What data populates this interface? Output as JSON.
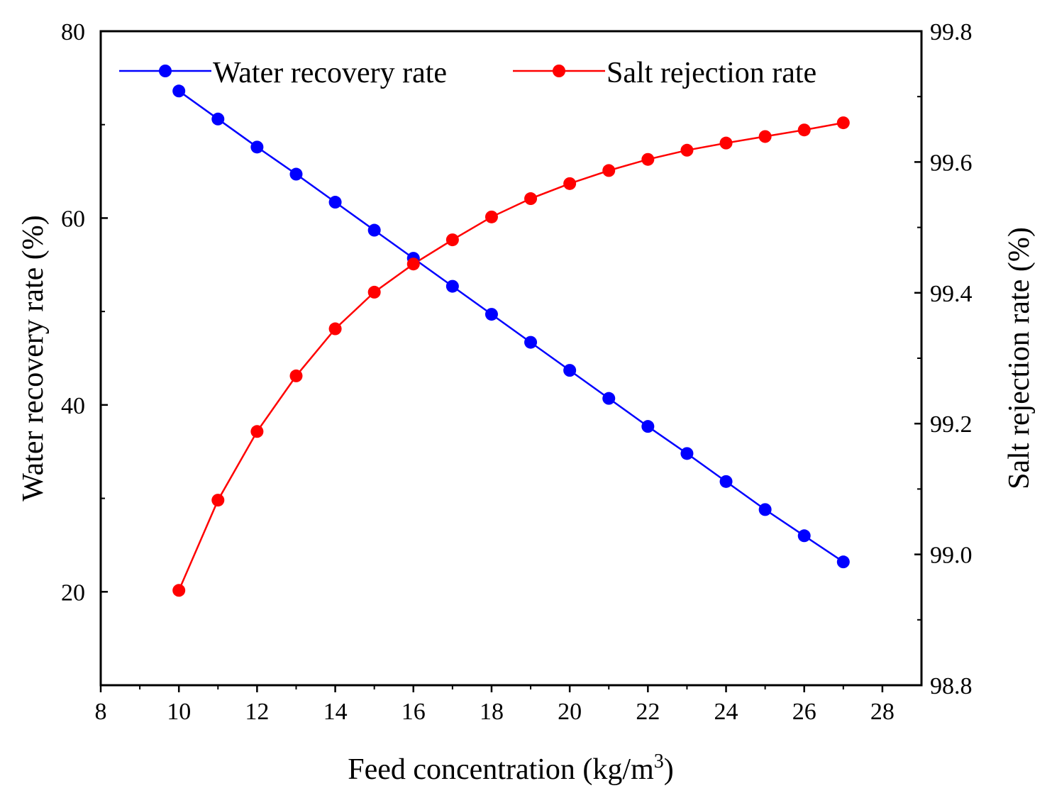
{
  "chart_data": {
    "type": "line",
    "title": "",
    "xlabel": "Feed concentration (kg/m",
    "xlabel_sup": "3",
    "xlabel_close": ")",
    "ylabel_left": "Water recovery rate (%)",
    "ylabel_right": "Salt rejection rate (%)",
    "xlim": [
      8,
      29
    ],
    "ylim_left": [
      10,
      80
    ],
    "ylim_right": [
      98.8,
      99.8
    ],
    "x_ticks": [
      "8",
      "10",
      "12",
      "14",
      "16",
      "18",
      "20",
      "22",
      "24",
      "26",
      "28"
    ],
    "y_left_ticks": [
      "20",
      "40",
      "60",
      "80"
    ],
    "y_right_ticks": [
      "98.8",
      "99.0",
      "99.2",
      "99.4",
      "99.6",
      "99.8"
    ],
    "grid": false,
    "legend_position": "top",
    "x": [
      10,
      11,
      12,
      13,
      14,
      15,
      16,
      17,
      18,
      19,
      20,
      21,
      22,
      23,
      24,
      25,
      26,
      27
    ],
    "series": [
      {
        "name": "Water recovery rate",
        "axis": "left",
        "color": "#0000ff",
        "values": [
          73.6,
          70.6,
          67.6,
          64.7,
          61.7,
          58.7,
          55.7,
          52.7,
          49.7,
          46.7,
          43.7,
          40.7,
          37.7,
          34.8,
          31.8,
          28.8,
          26.0,
          23.2
        ]
      },
      {
        "name": "Salt rejection rate",
        "axis": "right",
        "color": "#ff0000",
        "values": [
          98.945,
          99.083,
          99.188,
          99.273,
          99.345,
          99.401,
          99.444,
          99.481,
          99.516,
          99.544,
          99.567,
          99.587,
          99.604,
          99.618,
          99.629,
          99.639,
          99.649,
          99.66
        ]
      }
    ]
  }
}
